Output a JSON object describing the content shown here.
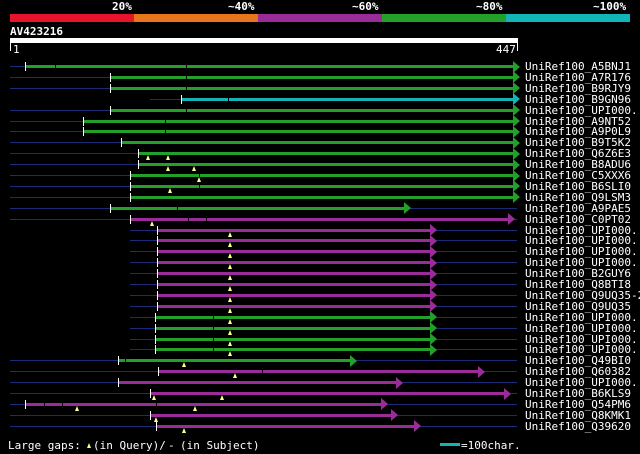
{
  "legend": {
    "percent_labels": [
      "20%",
      "~40%",
      "~60%",
      "~80%",
      "~100%"
    ],
    "colors": [
      "#e8142c",
      "#e8741c",
      "#9a2c9a",
      "#22a02a",
      "#12b4b8"
    ]
  },
  "query": {
    "id": "AV423216",
    "start": "1",
    "end": "447"
  },
  "hits": [
    {
      "name": "UniRef100_A5BNJ1",
      "color": "#22a02a"
    },
    {
      "name": "UniRef100_A7R176",
      "color": "#22a02a"
    },
    {
      "name": "UniRef100_B9RJY9",
      "color": "#22a02a"
    },
    {
      "name": "UniRef100_B9GN96",
      "color": "#12b4b8"
    },
    {
      "name": "UniRef100_UPI000..",
      "color": "#22a02a"
    },
    {
      "name": "UniRef100_A9NT52",
      "color": "#22a02a"
    },
    {
      "name": "UniRef100_A9P0L9",
      "color": "#22a02a"
    },
    {
      "name": "UniRef100_B9T5K2",
      "color": "#22a02a"
    },
    {
      "name": "UniRef100_Q6Z6E3",
      "color": "#22a02a"
    },
    {
      "name": "UniRef100_B8ADU6",
      "color": "#22a02a"
    },
    {
      "name": "UniRef100_C5XXX6",
      "color": "#22a02a"
    },
    {
      "name": "UniRef100_B6SLI0",
      "color": "#22a02a"
    },
    {
      "name": "UniRef100_Q9LSM3",
      "color": "#22a02a"
    },
    {
      "name": "UniRef100_A9PAE5",
      "color": "#22a02a"
    },
    {
      "name": "UniRef100_C0PT02",
      "color": "#9a2c9a"
    },
    {
      "name": "UniRef100_UPI000..",
      "color": "#9a2c9a"
    },
    {
      "name": "UniRef100_UPI000..",
      "color": "#9a2c9a"
    },
    {
      "name": "UniRef100_UPI000..",
      "color": "#9a2c9a"
    },
    {
      "name": "UniRef100_UPI000..",
      "color": "#9a2c9a"
    },
    {
      "name": "UniRef100_B2GUY6",
      "color": "#9a2c9a"
    },
    {
      "name": "UniRef100_Q8BTI8",
      "color": "#9a2c9a"
    },
    {
      "name": "UniRef100_Q9UQ35-2",
      "color": "#9a2c9a"
    },
    {
      "name": "UniRef100_Q9UQ35",
      "color": "#9a2c9a"
    },
    {
      "name": "UniRef100_UPI000..",
      "color": "#22a02a"
    },
    {
      "name": "UniRef100_UPI000..",
      "color": "#22a02a"
    },
    {
      "name": "UniRef100_UPI000..",
      "color": "#22a02a"
    },
    {
      "name": "UniRef100_UPI000..",
      "color": "#22a02a"
    },
    {
      "name": "UniRef100_Q49BI0",
      "color": "#22a02a"
    },
    {
      "name": "UniRef100_Q60382",
      "color": "#9a2c9a"
    },
    {
      "name": "UniRef100_UPI000..",
      "color": "#9a2c9a"
    },
    {
      "name": "UniRef100_B6KLS9",
      "color": "#9a2c9a"
    },
    {
      "name": "UniRef100_Q54PM6",
      "color": "#9a2c9a"
    },
    {
      "name": "UniRef100_Q8KMK1",
      "color": "#9a2c9a"
    },
    {
      "name": "UniRef100_Q39620",
      "color": "#9a2c9a"
    }
  ],
  "footer": {
    "gaps_label": "Large gaps:",
    "query_gap_text": "(in Query)/",
    "subject_gap_symbol": "-",
    "subject_gap_text": "(in Subject)",
    "scale_label": "=100char.",
    "scale_color": "#12b4b8"
  }
}
